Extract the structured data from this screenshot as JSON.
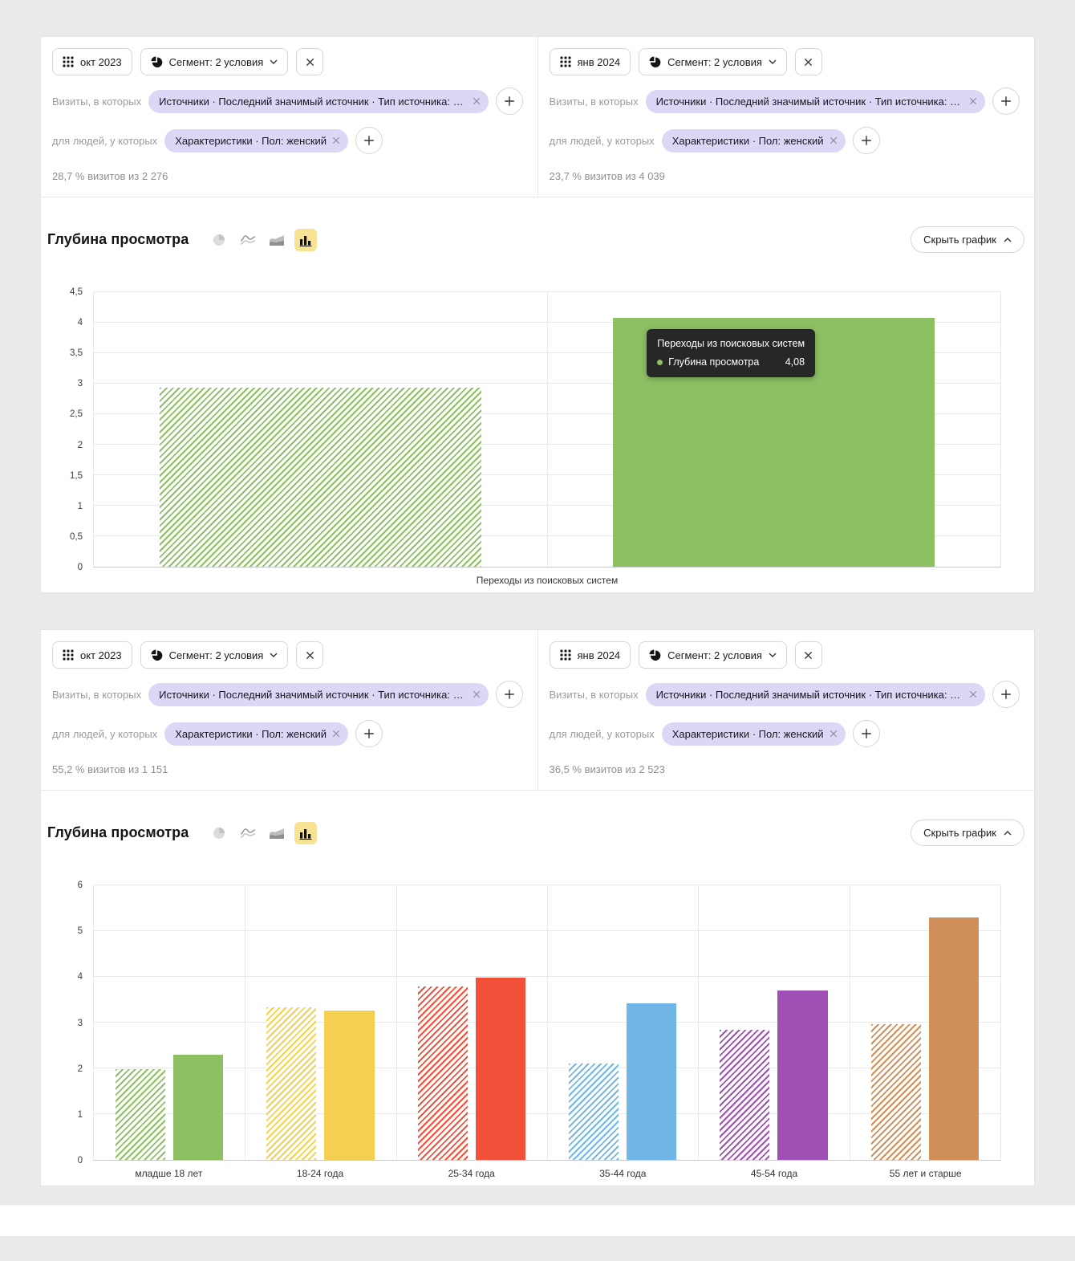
{
  "colors": {
    "page_bg": "#ebebeb",
    "chip_bg": "#dcd7f5",
    "active_icon_bg": "#f8e294",
    "tooltip_bg": "#272727",
    "bar_green": "#8dc063",
    "bar_yellow": "#f5cf4f",
    "bar_red": "#f3503a",
    "bar_blue": "#70b6e6",
    "bar_purple": "#a050b4",
    "bar_orange": "#d08f59"
  },
  "icons": {
    "calendar": "grid-of-dots",
    "segment_pie": "pie-with-slice",
    "chevron_down": "v",
    "chevron_up": "^",
    "close": "x",
    "plus": "+",
    "chart_type_pie": "pie",
    "chart_type_line": "curves",
    "chart_type_area": "stacked-waves",
    "chart_type_bar": "columns"
  },
  "cards": [
    {
      "panels": [
        {
          "date_label": "окт 2023",
          "segment_label": "Сегмент: 2 условия",
          "conditions": [
            {
              "label": "Визиты, в которых",
              "chip": "Источники · Последний значимый источник · Тип источника: П..."
            },
            {
              "label": "для людей, у которых",
              "chip": "Характеристики · Пол: женский"
            }
          ],
          "summary": "28,7 % визитов из 2 276"
        },
        {
          "date_label": "янв 2024",
          "segment_label": "Сегмент: 2 условия",
          "conditions": [
            {
              "label": "Визиты, в которых",
              "chip": "Источники · Последний значимый источник · Тип источника: П..."
            },
            {
              "label": "для людей, у которых",
              "chip": "Характеристики · Пол: женский"
            }
          ],
          "summary": "23,7 % визитов из 4 039"
        }
      ],
      "chart_title": "Глубина просмотра",
      "hide_chart_label": "Скрыть график"
    },
    {
      "panels": [
        {
          "date_label": "окт 2023",
          "segment_label": "Сегмент: 2 условия",
          "conditions": [
            {
              "label": "Визиты, в которых",
              "chip": "Источники · Последний значимый источник · Тип источника: П..."
            },
            {
              "label": "для людей, у которых",
              "chip": "Характеристики · Пол: женский"
            }
          ],
          "summary": "55,2 % визитов из 1 151"
        },
        {
          "date_label": "янв 2024",
          "segment_label": "Сегмент: 2 условия",
          "conditions": [
            {
              "label": "Визиты, в которых",
              "chip": "Источники · Последний значимый источник · Тип источника: П..."
            },
            {
              "label": "для людей, у которых",
              "chip": "Характеристики · Пол: женский"
            }
          ],
          "summary": "36,5 % визитов из 2 523"
        }
      ],
      "chart_title": "Глубина просмотра",
      "hide_chart_label": "Скрыть график"
    }
  ],
  "chart_data": [
    {
      "type": "bar",
      "title": "Глубина просмотра",
      "categories": [
        "Переходы из поисковых систем"
      ],
      "series": [
        {
          "name": "окт 2023",
          "pattern": "hatched",
          "values": [
            2.93
          ]
        },
        {
          "name": "янв 2024",
          "pattern": "solid",
          "values": [
            4.08
          ]
        }
      ],
      "category_colors": [
        "#8dc063"
      ],
      "ylim": [
        0,
        4.5
      ],
      "ytick_values": [
        0,
        0.5,
        1,
        1.5,
        2,
        2.5,
        3,
        3.5,
        4,
        4.5
      ],
      "grid": true,
      "legend": "none",
      "tooltip": {
        "title": "Переходы из поисковых систем",
        "label": "Глубина просмотра",
        "value": "4,08",
        "dot_color": "#8dc063"
      }
    },
    {
      "type": "bar",
      "title": "Глубина просмотра",
      "categories": [
        "младше 18 лет",
        "18-24 года",
        "25-34 года",
        "35-44 года",
        "45-54 года",
        "55 лет и старше"
      ],
      "series": [
        {
          "name": "окт 2023",
          "pattern": "hatched",
          "values": [
            1.98,
            3.33,
            3.79,
            2.1,
            2.85,
            2.97
          ]
        },
        {
          "name": "янв 2024",
          "pattern": "solid",
          "values": [
            2.3,
            3.26,
            3.99,
            3.43,
            3.7,
            5.3
          ]
        }
      ],
      "category_colors": [
        "#8dc063",
        "#f5cf4f",
        "#f3503a",
        "#70b6e6",
        "#a050b4",
        "#d08f59"
      ],
      "ylim": [
        0,
        6
      ],
      "ytick_values": [
        0,
        1,
        2,
        3,
        4,
        5,
        6
      ],
      "grid": true,
      "legend": "none"
    }
  ]
}
